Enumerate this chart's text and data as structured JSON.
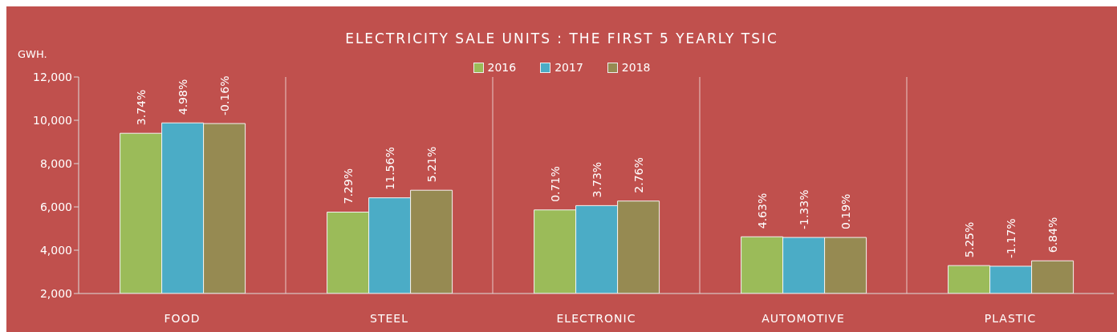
{
  "chart_data": {
    "type": "bar",
    "title": "ELECTRICITY SALE UNITS : THE FIRST 5 YEARLY TSIC",
    "ylabel": "GWH.",
    "categories": [
      "FOOD",
      "STEEL",
      "ELECTRONIC",
      "AUTOMOTIVE",
      "PLASTIC"
    ],
    "series": [
      {
        "name": "2016",
        "color": "#9bbb59",
        "values": [
          9400,
          5760,
          5860,
          4620,
          3290
        ]
      },
      {
        "name": "2017",
        "color": "#4bacc6",
        "values": [
          9880,
          6420,
          6060,
          4590,
          3260
        ]
      },
      {
        "name": "2018",
        "color": "#968a52",
        "values": [
          9850,
          6770,
          6270,
          4590,
          3510
        ]
      }
    ],
    "annotations": [
      "3.74%",
      "4.98%",
      "-0.16%",
      "7.29%",
      "11.56%",
      "5.21%",
      "0.71%",
      "3.73%",
      "2.76%",
      "4.63%",
      "-1.33%",
      "0.19%",
      "5.25%",
      "-1.17%",
      "6.84%"
    ],
    "ylim": [
      2000,
      12000
    ],
    "yticks": [
      {
        "value": 2000,
        "label": "2,000"
      },
      {
        "value": 4000,
        "label": "4,000"
      },
      {
        "value": 6000,
        "label": "6,000"
      },
      {
        "value": 8000,
        "label": "8,000"
      },
      {
        "value": 10000,
        "label": "10,000"
      },
      {
        "value": 12000,
        "label": "12,000"
      }
    ],
    "grid": "x",
    "legend": "top"
  }
}
